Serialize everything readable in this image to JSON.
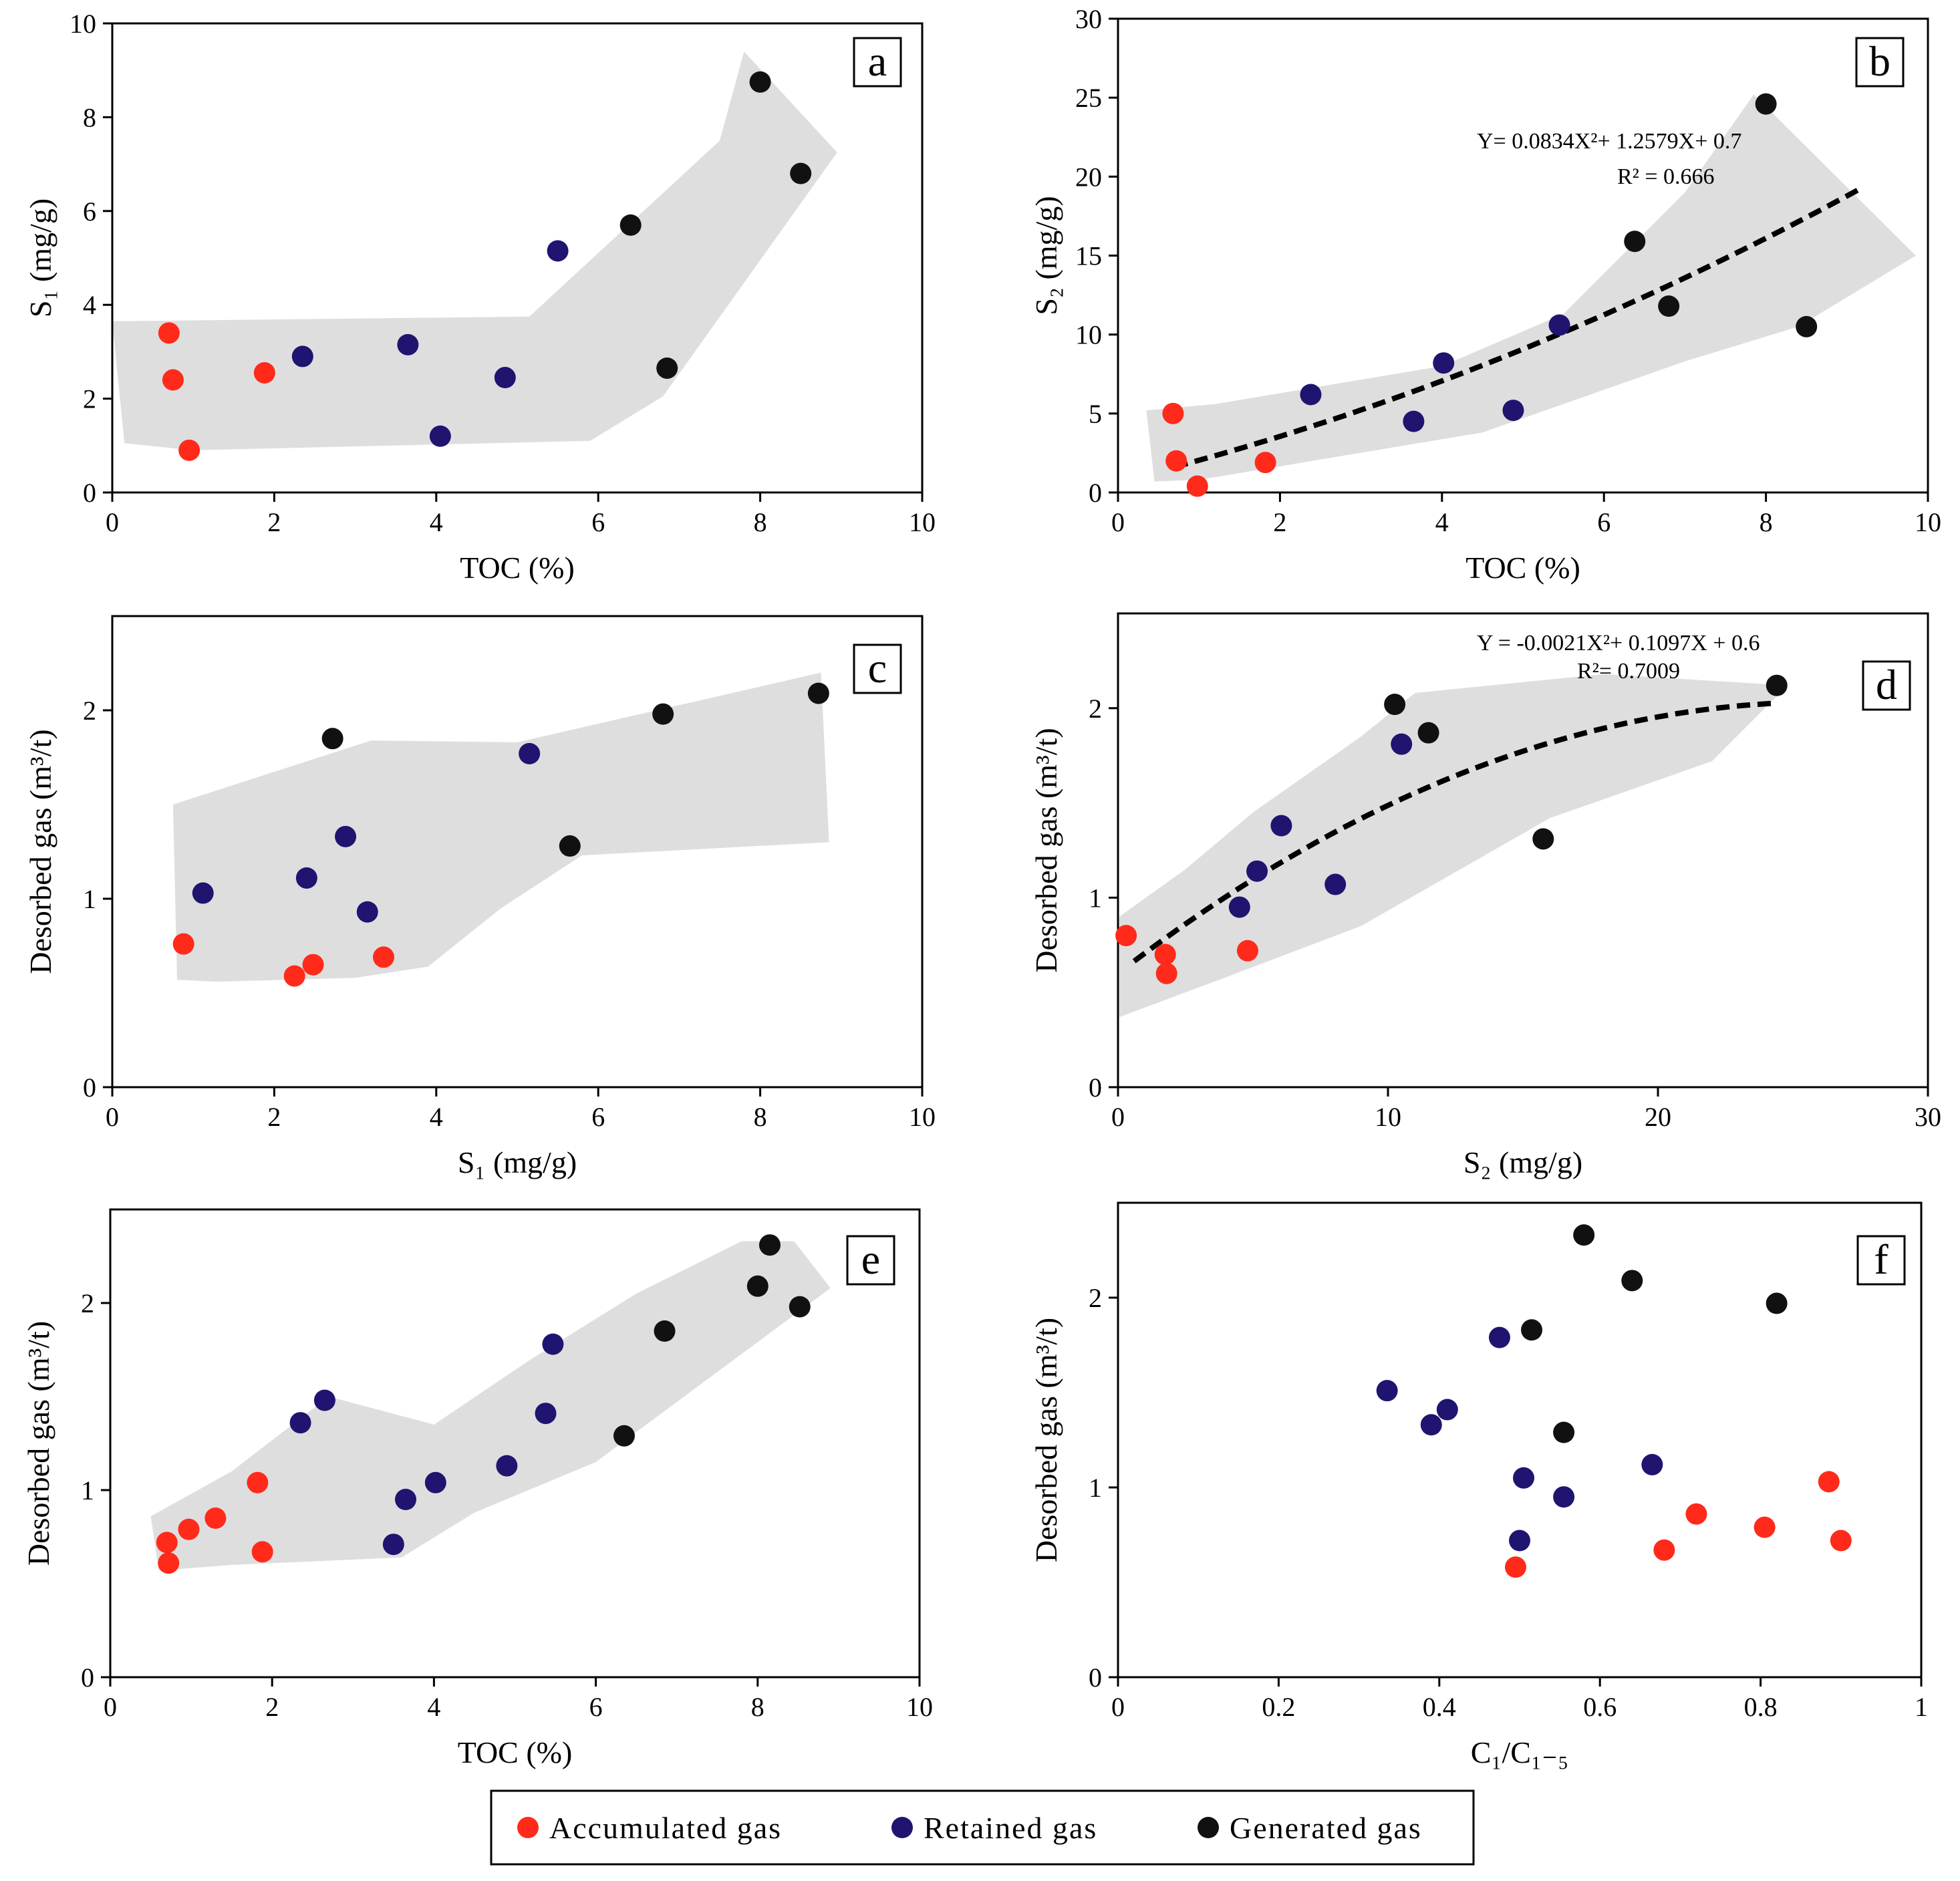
{
  "colors": {
    "accumulated": "#ff2a1a",
    "retained": "#1f1470",
    "generated": "#111111",
    "envelope": "#dedede"
  },
  "legend": [
    {
      "key": "accumulated",
      "label": "Accumulated gas"
    },
    {
      "key": "retained",
      "label": "Retained gas"
    },
    {
      "key": "generated",
      "label": "Generated gas"
    }
  ],
  "chart_data": [
    {
      "id": "a",
      "type": "scatter",
      "label": "a",
      "xlabel": "TOC (%)",
      "ylabel": "S₁ (mg/g)",
      "xlim": [
        0,
        10
      ],
      "ylim": [
        0,
        10
      ],
      "xticks": [
        0,
        2,
        4,
        6,
        8,
        10
      ],
      "yticks": [
        0,
        2,
        4,
        6,
        8,
        10
      ],
      "series": [
        {
          "name": "Accumulated gas",
          "key": "accumulated",
          "points": [
            [
              0.7,
              3.4
            ],
            [
              0.75,
              2.4
            ],
            [
              0.95,
              0.9
            ],
            [
              1.88,
              2.55
            ]
          ]
        },
        {
          "name": "Retained gas",
          "key": "retained",
          "points": [
            [
              2.35,
              2.9
            ],
            [
              3.65,
              3.15
            ],
            [
              4.05,
              1.2
            ],
            [
              4.85,
              2.45
            ],
            [
              5.5,
              5.15
            ]
          ]
        },
        {
          "name": "Generated gas",
          "key": "generated",
          "points": [
            [
              6.4,
              5.7
            ],
            [
              6.85,
              2.65
            ],
            [
              8.0,
              8.75
            ],
            [
              8.5,
              6.8
            ]
          ]
        }
      ],
      "envelope": [
        [
          0,
          3.65
        ],
        [
          5.15,
          3.75
        ],
        [
          7.5,
          7.5
        ],
        [
          7.8,
          9.4
        ],
        [
          8.95,
          7.25
        ],
        [
          6.8,
          2.05
        ],
        [
          5.9,
          1.1
        ],
        [
          1.0,
          0.9
        ],
        [
          0.15,
          1.05
        ]
      ]
    },
    {
      "id": "b",
      "type": "scatter",
      "label": "b",
      "xlabel": "TOC (%)",
      "ylabel": "S₂ (mg/g)",
      "xlim": [
        0,
        10
      ],
      "ylim": [
        0,
        30
      ],
      "xticks": [
        0,
        2,
        4,
        6,
        8,
        10
      ],
      "yticks": [
        0,
        5,
        10,
        15,
        20,
        25,
        30
      ],
      "series": [
        {
          "name": "Accumulated gas",
          "key": "accumulated",
          "points": [
            [
              0.68,
              5.0
            ],
            [
              0.72,
              2.0
            ],
            [
              0.98,
              0.4
            ],
            [
              1.82,
              1.9
            ]
          ]
        },
        {
          "name": "Retained gas",
          "key": "retained",
          "points": [
            [
              2.38,
              6.2
            ],
            [
              3.65,
              4.5
            ],
            [
              4.02,
              8.2
            ],
            [
              4.88,
              5.2
            ],
            [
              5.45,
              10.6
            ]
          ]
        },
        {
          "name": "Generated gas",
          "key": "generated",
          "points": [
            [
              6.38,
              15.9
            ],
            [
              6.8,
              11.8
            ],
            [
              8.0,
              24.6
            ],
            [
              8.5,
              10.5
            ]
          ]
        }
      ],
      "envelope": [
        [
          0.35,
          5.2
        ],
        [
          1.2,
          5.6
        ],
        [
          4.0,
          8.0
        ],
        [
          5.5,
          11.3
        ],
        [
          7.0,
          19.0
        ],
        [
          7.85,
          25.2
        ],
        [
          9.85,
          15.0
        ],
        [
          8.4,
          10.5
        ],
        [
          7.0,
          8.3
        ],
        [
          4.5,
          3.8
        ],
        [
          1.0,
          0.8
        ],
        [
          0.45,
          0.7
        ]
      ],
      "fit": {
        "a": 0.0834,
        "b": 1.2579,
        "c": 0.7,
        "x0": 0.7,
        "x1": 9.15
      },
      "equation": "Y= 0.0834X²+ 1.2579X+ 0.7",
      "r2": "R² = 0.666"
    },
    {
      "id": "c",
      "type": "scatter",
      "label": "c",
      "xlabel": "S₁ (mg/g)",
      "ylabel": "Desorbed gas (m³/t)",
      "xlim": [
        0,
        10
      ],
      "ylim": [
        0,
        2.5
      ],
      "xticks": [
        0,
        2,
        4,
        6,
        8,
        10
      ],
      "yticks": [
        0,
        1,
        2
      ],
      "series": [
        {
          "name": "Accumulated gas",
          "key": "accumulated",
          "points": [
            [
              0.88,
              0.76
            ],
            [
              2.25,
              0.59
            ],
            [
              2.48,
              0.65
            ],
            [
              3.35,
              0.69
            ]
          ]
        },
        {
          "name": "Retained gas",
          "key": "retained",
          "points": [
            [
              1.12,
              1.03
            ],
            [
              2.4,
              1.11
            ],
            [
              2.88,
              1.33
            ],
            [
              3.15,
              0.93
            ],
            [
              5.15,
              1.77
            ]
          ]
        },
        {
          "name": "Generated gas",
          "key": "generated",
          "points": [
            [
              2.72,
              1.85
            ],
            [
              5.65,
              1.28
            ],
            [
              6.8,
              1.98
            ],
            [
              8.72,
              2.09
            ]
          ]
        }
      ],
      "envelope": [
        [
          0.75,
          1.5
        ],
        [
          3.2,
          1.84
        ],
        [
          5.0,
          1.83
        ],
        [
          8.75,
          2.2
        ],
        [
          8.85,
          1.3
        ],
        [
          5.8,
          1.23
        ],
        [
          4.8,
          0.95
        ],
        [
          3.9,
          0.64
        ],
        [
          3.0,
          0.58
        ],
        [
          1.3,
          0.56
        ],
        [
          0.8,
          0.57
        ]
      ]
    },
    {
      "id": "d",
      "type": "scatter",
      "label": "d",
      "xlabel": "S₂ (mg/g)",
      "ylabel": "Desorbed gas (m³/t)",
      "xlim": [
        0,
        30
      ],
      "ylim": [
        0,
        2.5
      ],
      "xticks": [
        0,
        10,
        20,
        30
      ],
      "yticks": [
        0,
        1,
        2
      ],
      "series": [
        {
          "name": "Accumulated gas",
          "key": "accumulated",
          "points": [
            [
              0.3,
              0.8
            ],
            [
              1.75,
              0.7
            ],
            [
              1.8,
              0.6
            ],
            [
              4.8,
              0.72
            ]
          ]
        },
        {
          "name": "Retained gas",
          "key": "retained",
          "points": [
            [
              4.5,
              0.95
            ],
            [
              5.15,
              1.14
            ],
            [
              6.05,
              1.38
            ],
            [
              8.05,
              1.07
            ],
            [
              10.5,
              1.81
            ]
          ]
        },
        {
          "name": "Generated gas",
          "key": "generated",
          "points": [
            [
              10.25,
              2.02
            ],
            [
              11.5,
              1.87
            ],
            [
              15.75,
              1.31
            ],
            [
              24.4,
              2.12
            ]
          ]
        }
      ],
      "envelope": [
        [
          0.05,
          0.9
        ],
        [
          2.5,
          1.15
        ],
        [
          5.0,
          1.45
        ],
        [
          9.0,
          1.85
        ],
        [
          11.0,
          2.08
        ],
        [
          18.0,
          2.18
        ],
        [
          24.8,
          2.12
        ],
        [
          22.0,
          1.72
        ],
        [
          16.0,
          1.42
        ],
        [
          9.0,
          0.85
        ],
        [
          4.0,
          0.58
        ],
        [
          0.05,
          0.37
        ]
      ],
      "fit": {
        "a": -0.0021,
        "b": 0.1097,
        "c": 0.6,
        "x0": 0.6,
        "x1": 24.3
      },
      "equation": "Y = -0.0021X²+ 0.1097X + 0.6",
      "r2": "R²= 0.7009"
    },
    {
      "id": "e",
      "type": "scatter",
      "label": "e",
      "xlabel": "TOC (%)",
      "ylabel": "Desorbed gas (m³/t)",
      "xlim": [
        0,
        10
      ],
      "ylim": [
        0,
        2.5
      ],
      "xticks": [
        0,
        2,
        4,
        6,
        8,
        10
      ],
      "yticks": [
        0,
        1,
        2
      ],
      "series": [
        {
          "name": "Accumulated gas",
          "key": "accumulated",
          "points": [
            [
              0.7,
              0.72
            ],
            [
              0.72,
              0.61
            ],
            [
              0.97,
              0.79
            ],
            [
              1.3,
              0.85
            ],
            [
              1.82,
              1.04
            ],
            [
              1.88,
              0.67
            ]
          ]
        },
        {
          "name": "Retained gas",
          "key": "retained",
          "points": [
            [
              2.35,
              1.36
            ],
            [
              2.65,
              1.48
            ],
            [
              3.5,
              0.71
            ],
            [
              3.65,
              0.95
            ],
            [
              4.02,
              1.04
            ],
            [
              4.9,
              1.13
            ],
            [
              5.38,
              1.41
            ],
            [
              5.47,
              1.78
            ]
          ]
        },
        {
          "name": "Generated gas",
          "key": "generated",
          "points": [
            [
              6.35,
              1.29
            ],
            [
              6.85,
              1.85
            ],
            [
              8.0,
              2.09
            ],
            [
              8.15,
              2.31
            ],
            [
              8.52,
              1.98
            ]
          ]
        }
      ],
      "envelope": [
        [
          0.5,
          0.86
        ],
        [
          1.5,
          1.1
        ],
        [
          2.7,
          1.5
        ],
        [
          4.0,
          1.35
        ],
        [
          5.2,
          1.7
        ],
        [
          6.5,
          2.05
        ],
        [
          7.8,
          2.33
        ],
        [
          8.45,
          2.33
        ],
        [
          8.9,
          2.08
        ],
        [
          6.0,
          1.15
        ],
        [
          4.5,
          0.88
        ],
        [
          3.6,
          0.64
        ],
        [
          1.5,
          0.6
        ],
        [
          0.6,
          0.57
        ]
      ]
    },
    {
      "id": "f",
      "type": "scatter",
      "label": "f",
      "xlabel": "C₁/C₁₋₅",
      "ylabel": "Desorbed gas (m³/t)",
      "xlim": [
        0,
        1
      ],
      "ylim": [
        0,
        2.5
      ],
      "xticks": [
        0,
        0.2,
        0.4,
        0.6,
        0.8,
        1
      ],
      "yticks": [
        0,
        1,
        2
      ],
      "series": [
        {
          "name": "Accumulated gas",
          "key": "accumulated",
          "points": [
            [
              0.495,
              0.58
            ],
            [
              0.68,
              0.67
            ],
            [
              0.72,
              0.86
            ],
            [
              0.805,
              0.79
            ],
            [
              0.885,
              1.03
            ],
            [
              0.9,
              0.72
            ]
          ]
        },
        {
          "name": "Retained gas",
          "key": "retained",
          "points": [
            [
              0.335,
              1.51
            ],
            [
              0.39,
              1.33
            ],
            [
              0.41,
              1.41
            ],
            [
              0.475,
              1.79
            ],
            [
              0.5,
              0.72
            ],
            [
              0.505,
              1.05
            ],
            [
              0.555,
              0.95
            ],
            [
              0.665,
              1.12
            ]
          ]
        },
        {
          "name": "Generated gas",
          "key": "generated",
          "points": [
            [
              0.515,
              1.83
            ],
            [
              0.555,
              1.29
            ],
            [
              0.58,
              2.33
            ],
            [
              0.64,
              2.09
            ],
            [
              0.82,
              1.97
            ]
          ]
        }
      ],
      "envelope": []
    }
  ]
}
